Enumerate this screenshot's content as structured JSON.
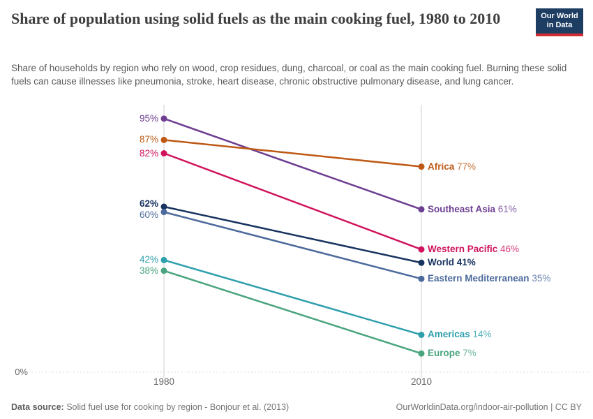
{
  "header": {
    "title": "Share of population using solid fuels as the main cooking fuel, 1980 to 2010",
    "logo": {
      "line1": "Our World",
      "line2": "in Data",
      "bg": "#1D3D63",
      "accent": "#D12B33"
    }
  },
  "subtitle": "Share of households by region who rely on wood, crop residues, dung, charcoal, or coal as the main cooking fuel. Burning these solid fuels can cause illnesses like pneumonia, stroke, heart disease, chronic obstructive pulmonary disease, and lung cancer.",
  "chart_data": {
    "type": "line",
    "subtype": "slope",
    "title": "Share of population using solid fuels as the main cooking fuel, 1980 to 2010",
    "x": [
      1980,
      2010
    ],
    "x_tick_labels": [
      "1980",
      "2010"
    ],
    "ylim": [
      0,
      100
    ],
    "y_axis": {
      "baseline_label": "0%"
    },
    "grid": "baseline-only",
    "legend_position": "inline-right",
    "series": [
      {
        "name": "Southeast Asia",
        "values": [
          95,
          61
        ],
        "start_label": "95%",
        "end_label": "61%",
        "color": "#6D3E91",
        "bold": false
      },
      {
        "name": "Africa",
        "values": [
          87,
          77
        ],
        "start_label": "87%",
        "end_label": "77%",
        "color": "#BE5915",
        "bold": false
      },
      {
        "name": "Western Pacific",
        "values": [
          82,
          46
        ],
        "start_label": "82%",
        "end_label": "46%",
        "color": "#D0135C",
        "bold": false
      },
      {
        "name": "World",
        "values": [
          62,
          41
        ],
        "start_label": "62%",
        "end_label": "41%",
        "color": "#183360",
        "bold": true
      },
      {
        "name": "Eastern Mediterranean",
        "values": [
          60,
          35
        ],
        "start_label": "60%",
        "end_label": "35%",
        "color": "#4C6A9C",
        "bold": false
      },
      {
        "name": "Americas",
        "values": [
          42,
          14
        ],
        "start_label": "42%",
        "end_label": "14%",
        "color": "#2E9FAC",
        "bold": false
      },
      {
        "name": "Europe",
        "values": [
          38,
          7
        ],
        "start_label": "38%",
        "end_label": "7%",
        "color": "#4AA47E",
        "bold": false
      }
    ]
  },
  "footer": {
    "source_label": "Data source:",
    "source_text": "Solid fuel use for cooking by region - Bonjour et al. (2013)",
    "credit": "OurWorldinData.org/indoor-air-pollution | CC BY"
  }
}
